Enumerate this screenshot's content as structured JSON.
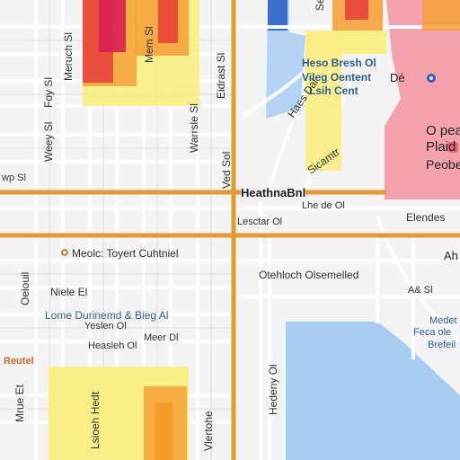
{
  "map": {
    "labels": {
      "top_street_1": "Meruch Sl",
      "top_street_2": "Mem Sl",
      "left_street_1": "Foy Sl",
      "left_street_2": "Weey Sl",
      "left_street_3": "wp Sl",
      "mid_street_1": "Warrsle Sl",
      "mid_street_2": "Eidrast Sl",
      "mid_street_3": "Sicamtr",
      "top_center": "Seelde",
      "place_blue_1": "Heso Bresh Ol",
      "place_blue_2": "Vileg Oentent",
      "place_blue_3": "Lsih Cent",
      "place_right_1": "Dé",
      "place_right_2": "O pear",
      "place_right_3": "Plaid",
      "place_right_4": "Peobe",
      "main_road": "HeathnaBnl",
      "road_label_1": "Lesctar Ol",
      "road_label_2": "Lhe de Ol",
      "road_label_3": "Elendes",
      "corner_right": "Ah",
      "poi_1": "Meolc: Toyert Cuhtniel",
      "poi_2": "Otehloch Olsemelled",
      "poi_3": "Niele El",
      "poi_4": "Lome Durinemd & Bieg Al",
      "poi_5": "Yeslen Ol",
      "poi_6": "Heasleh Ol",
      "poi_7": "Meer Dl",
      "poi_8": "A& Sl",
      "poi_9": "Reutel",
      "right_lower_1": "Medet",
      "right_lower_2": "Feca ole",
      "right_lower_3": "Brefeil",
      "vert_left_1": "Oeiouil",
      "vert_low_1": "Vlertohe",
      "vert_low_2": "Lsioeh Hedt",
      "vert_low_3": "Mrue Et",
      "vert_right_1": "Haes Dal",
      "vert_right_2": "Hedeny Ol",
      "vert_right_3": "Ved Sol"
    },
    "colors": {
      "background": "#f4f4f4",
      "road_major": "#e39a2e",
      "road_minor": "#ffffff",
      "water": "#a9cdf2",
      "park_pink": "#f4a3ae",
      "heat_red": "#e8433a",
      "heat_orange": "#f6a23a",
      "heat_yellow": "#f9ee7a"
    },
    "icons": {
      "pin": "location-pin-icon",
      "poi": "poi-marker-icon"
    }
  }
}
